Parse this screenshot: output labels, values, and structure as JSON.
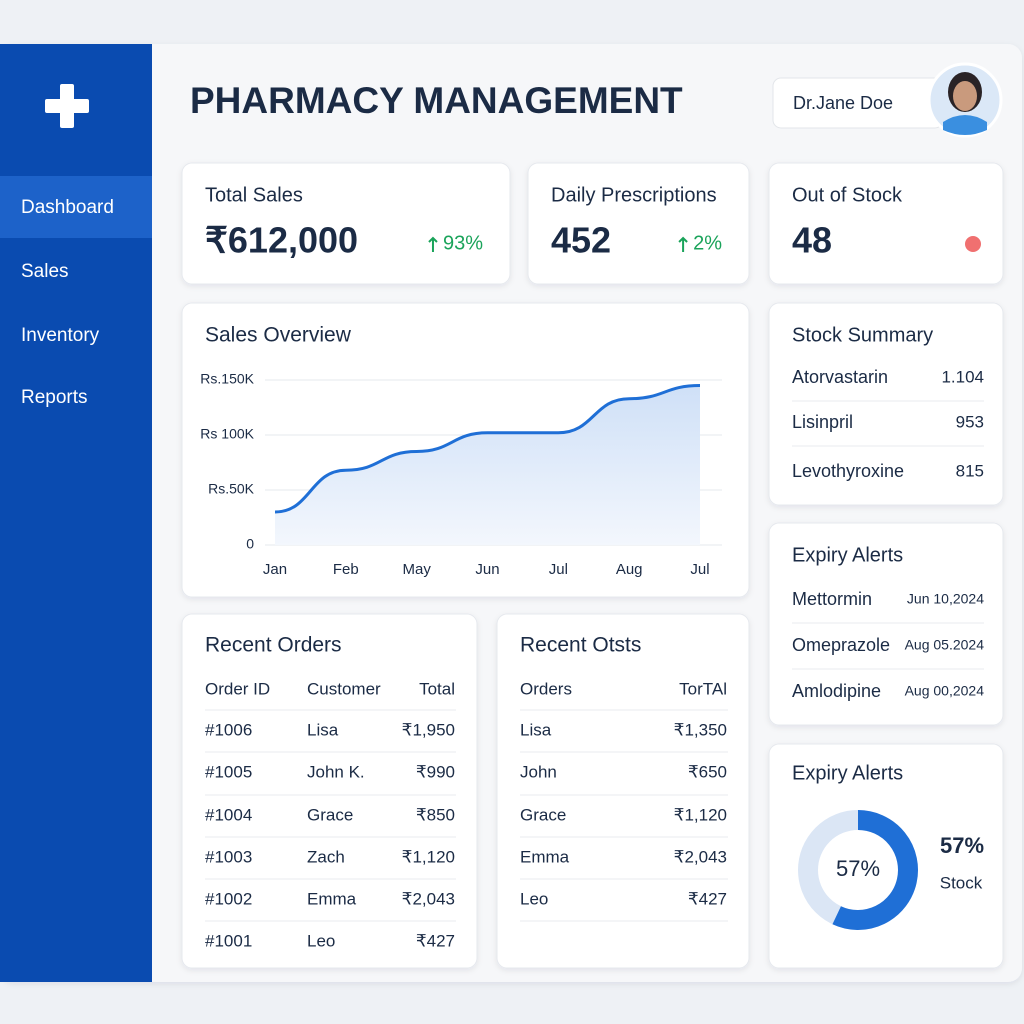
{
  "sidebar": {
    "nav": [
      "Dashboard",
      "Sales",
      "Inventory",
      "Reports"
    ]
  },
  "header": {
    "title": "PHARMACY MANAGEMENT",
    "user": "Dr.Jane Doe"
  },
  "kpis": [
    {
      "label": "Total Sales",
      "value": "₹612,000",
      "change": "93%"
    },
    {
      "label": "Daily Prescriptions",
      "value": "452",
      "change": "2%"
    },
    {
      "label": "Out of Stock",
      "value": "48"
    }
  ],
  "sales_overview": {
    "type": "line",
    "title": "Sales Overview",
    "categories": [
      "Jan",
      "Feb",
      "May",
      "Jun",
      "Jul",
      "Aug",
      "Jul"
    ],
    "values": [
      30000,
      68000,
      85000,
      102000,
      102000,
      133000,
      145000
    ],
    "ylim": [
      0,
      150000
    ],
    "yticks": [
      0,
      {
        "value": 50000,
        "label": "Rs.50K"
      },
      {
        "value": 100000,
        "label": "Rs 100K"
      },
      {
        "value": 150000,
        "label": "Rs.150K"
      }
    ],
    "color": "#1f6fd6",
    "grid": true
  },
  "stock_summary": {
    "title": "Stock Summary",
    "rows": [
      [
        "Atorvastarin",
        "1.104"
      ],
      [
        "Lisinpril",
        "953"
      ],
      [
        "Levothyroxine",
        "815"
      ]
    ]
  },
  "expiry_alerts": {
    "title": "Expiry Alerts",
    "rows": [
      [
        "Mettormin",
        "Jun 10,2024"
      ],
      [
        "Omeprazole",
        "Aug 05.2024"
      ],
      [
        "Amlodipine",
        "Aug 00,2024"
      ]
    ]
  },
  "recent_orders": {
    "title": "Recent Orders",
    "columns": [
      "Order ID",
      "Customer",
      "Total"
    ],
    "rows": [
      [
        "#1006",
        "Lisa",
        "₹1,950"
      ],
      [
        "#1005",
        "John K.",
        "₹990"
      ],
      [
        "#1004",
        "Grace",
        "₹850"
      ],
      [
        "#1003",
        "Zach",
        "₹1,120"
      ],
      [
        "#1002",
        "Emma",
        "₹2,043"
      ],
      [
        "#1001",
        "Leo",
        "₹427"
      ]
    ]
  },
  "recent_otsts": {
    "title": "Recent Otsts",
    "columns": [
      "Orders",
      "TorTAl"
    ],
    "rows": [
      [
        "Lisa",
        "₹1,350"
      ],
      [
        "John",
        "₹650"
      ],
      [
        "Grace",
        "₹1,120"
      ],
      [
        "Emma",
        "₹2,043"
      ],
      [
        "Leo",
        "₹427"
      ]
    ]
  },
  "stock_donut": {
    "type": "donut",
    "title": "Expiry Alerts",
    "value": 57,
    "value_label": "57%",
    "caption": "Stock",
    "color": "#1f6fd6"
  }
}
